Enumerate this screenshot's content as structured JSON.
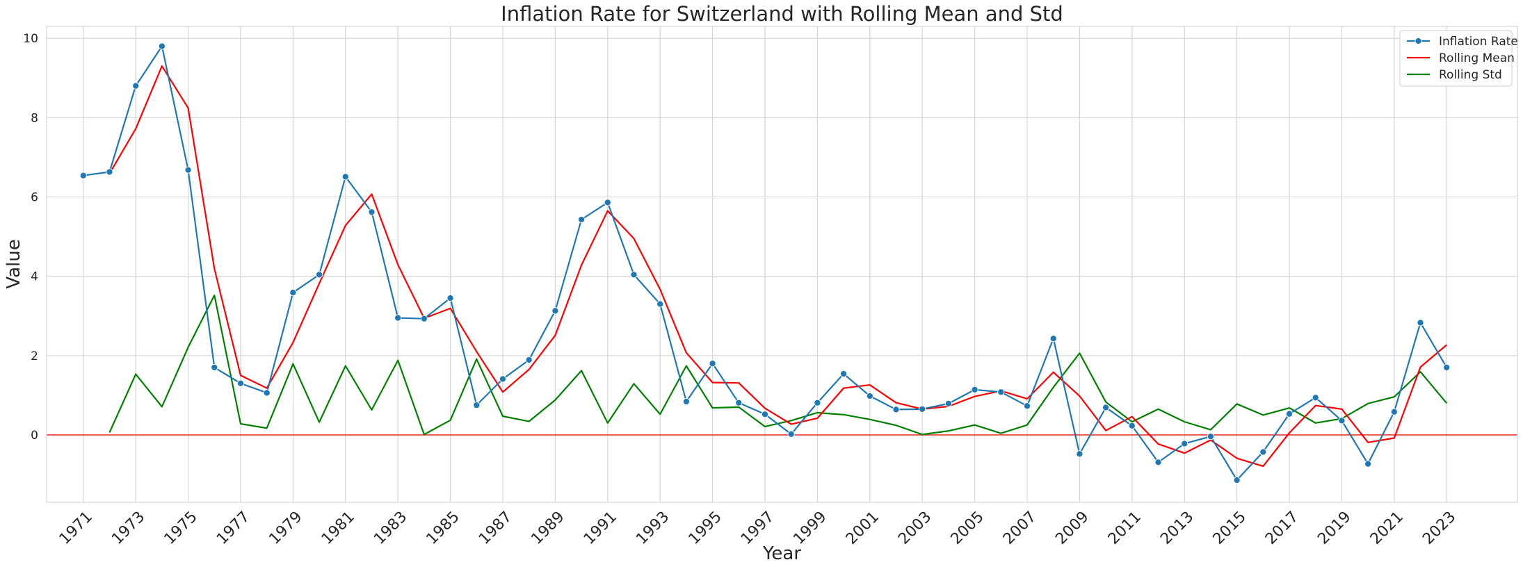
{
  "chart_data": {
    "type": "line",
    "title": "Inflation Rate for Switzerland with Rolling Mean and Std",
    "xlabel": "Year",
    "ylabel": "Value",
    "xlim": [
      1969.6,
      2025.7
    ],
    "ylim": [
      -1.7,
      10.3
    ],
    "yticks": [
      0,
      2,
      4,
      6,
      8,
      10
    ],
    "xticks": [
      1971,
      1973,
      1975,
      1977,
      1979,
      1981,
      1983,
      1985,
      1987,
      1989,
      1991,
      1993,
      1995,
      1997,
      1999,
      2001,
      2003,
      2005,
      2007,
      2009,
      2011,
      2013,
      2015,
      2017,
      2019,
      2021,
      2023
    ],
    "grid": true,
    "legend_position": "top-right",
    "hline": {
      "y": 0,
      "color": "#e8281e"
    },
    "x": [
      1971,
      1972,
      1973,
      1974,
      1975,
      1976,
      1977,
      1978,
      1979,
      1980,
      1981,
      1982,
      1983,
      1984,
      1985,
      1986,
      1987,
      1988,
      1989,
      1990,
      1991,
      1992,
      1993,
      1994,
      1995,
      1996,
      1997,
      1998,
      1999,
      2000,
      2001,
      2002,
      2003,
      2004,
      2005,
      2006,
      2007,
      2008,
      2009,
      2010,
      2011,
      2012,
      2013,
      2014,
      2015,
      2016,
      2017,
      2018,
      2019,
      2020,
      2021,
      2022,
      2023
    ],
    "series": [
      {
        "name": "Inflation Rate",
        "color": "#1f77b4",
        "marker": true,
        "values": [
          6.54,
          6.63,
          8.8,
          9.8,
          6.68,
          1.7,
          1.3,
          1.06,
          3.59,
          4.04,
          6.51,
          5.62,
          2.95,
          2.93,
          3.45,
          0.75,
          1.41,
          1.89,
          3.13,
          5.43,
          5.86,
          4.04,
          3.3,
          0.84,
          1.8,
          0.81,
          0.52,
          0.02,
          0.81,
          1.54,
          0.98,
          0.64,
          0.65,
          0.79,
          1.14,
          1.08,
          0.73,
          2.43,
          -0.48,
          0.69,
          0.23,
          -0.69,
          -0.22,
          -0.04,
          -1.14,
          -0.43,
          0.53,
          0.94,
          0.36,
          -0.73,
          0.58,
          2.83,
          1.7
        ]
      },
      {
        "name": "Rolling Mean",
        "color": "#ff0000",
        "marker": false,
        "values": [
          null,
          6.59,
          7.72,
          9.3,
          8.24,
          4.19,
          1.5,
          1.18,
          2.33,
          3.82,
          5.28,
          6.07,
          4.29,
          2.94,
          3.19,
          2.1,
          1.08,
          1.65,
          2.51,
          4.28,
          5.65,
          4.95,
          3.67,
          2.07,
          1.32,
          1.31,
          0.67,
          0.27,
          0.42,
          1.18,
          1.26,
          0.81,
          0.65,
          0.72,
          0.97,
          1.11,
          0.91,
          1.58,
          0.98,
          0.11,
          0.46,
          -0.23,
          -0.46,
          -0.13,
          -0.59,
          -0.79,
          0.05,
          0.74,
          0.65,
          -0.19,
          -0.08,
          1.71,
          2.27
        ]
      },
      {
        "name": "Rolling Std",
        "color": "#008000",
        "marker": false,
        "values": [
          null,
          0.06,
          1.53,
          0.71,
          2.21,
          3.52,
          0.28,
          0.17,
          1.79,
          0.32,
          1.74,
          0.63,
          1.88,
          0.01,
          0.37,
          1.91,
          0.47,
          0.34,
          0.88,
          1.62,
          0.3,
          1.29,
          0.52,
          1.74,
          0.68,
          0.7,
          0.21,
          0.36,
          0.56,
          0.51,
          0.39,
          0.24,
          0.01,
          0.1,
          0.25,
          0.04,
          0.25,
          1.2,
          2.06,
          0.83,
          0.33,
          0.65,
          0.33,
          0.13,
          0.78,
          0.5,
          0.68,
          0.3,
          0.41,
          0.79,
          0.96,
          1.59,
          0.8
        ]
      }
    ]
  }
}
